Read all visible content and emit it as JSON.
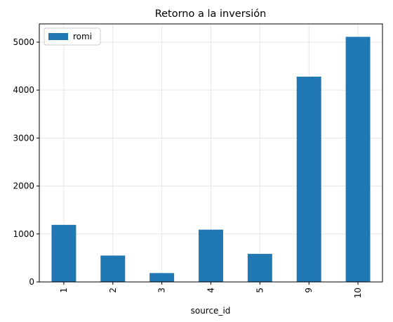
{
  "chart_data": {
    "type": "bar",
    "title": "Retorno a la inversión",
    "xlabel": "source_id",
    "ylabel": "",
    "categories": [
      "1",
      "2",
      "3",
      "4",
      "5",
      "9",
      "10"
    ],
    "series": [
      {
        "name": "romi",
        "values": [
          1190,
          550,
          185,
          1090,
          585,
          4280,
          5110
        ],
        "color": "#1f77b4"
      }
    ],
    "ylim": [
      0,
      5380
    ],
    "yticks": [
      0,
      1000,
      2000,
      3000,
      4000,
      5000
    ],
    "grid": true,
    "legend_position": "top-left",
    "x_tick_rotation": "vertical"
  }
}
